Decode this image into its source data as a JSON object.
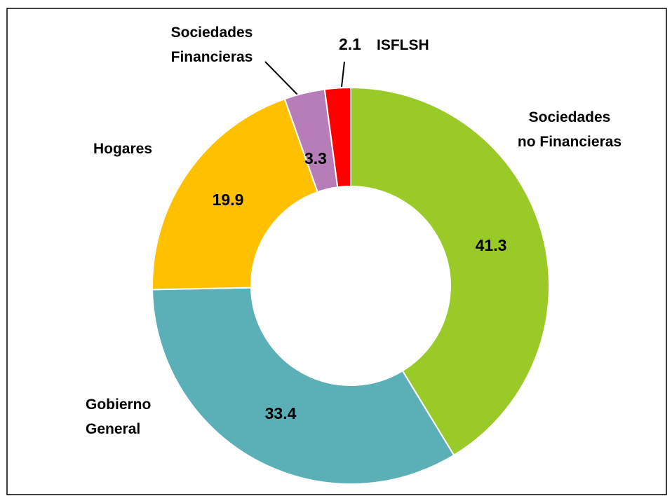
{
  "chart_data": {
    "type": "donut",
    "categories": [
      "Sociedades no Financieras",
      "Gobierno General",
      "Hogares",
      "Sociedades Financieras",
      "ISFLSH"
    ],
    "values": [
      41.3,
      33.4,
      19.9,
      3.3,
      2.1
    ],
    "colors": [
      "#9aca27",
      "#5bb0b8",
      "#ffc000",
      "#b67db8",
      "#ff0000"
    ]
  }
}
